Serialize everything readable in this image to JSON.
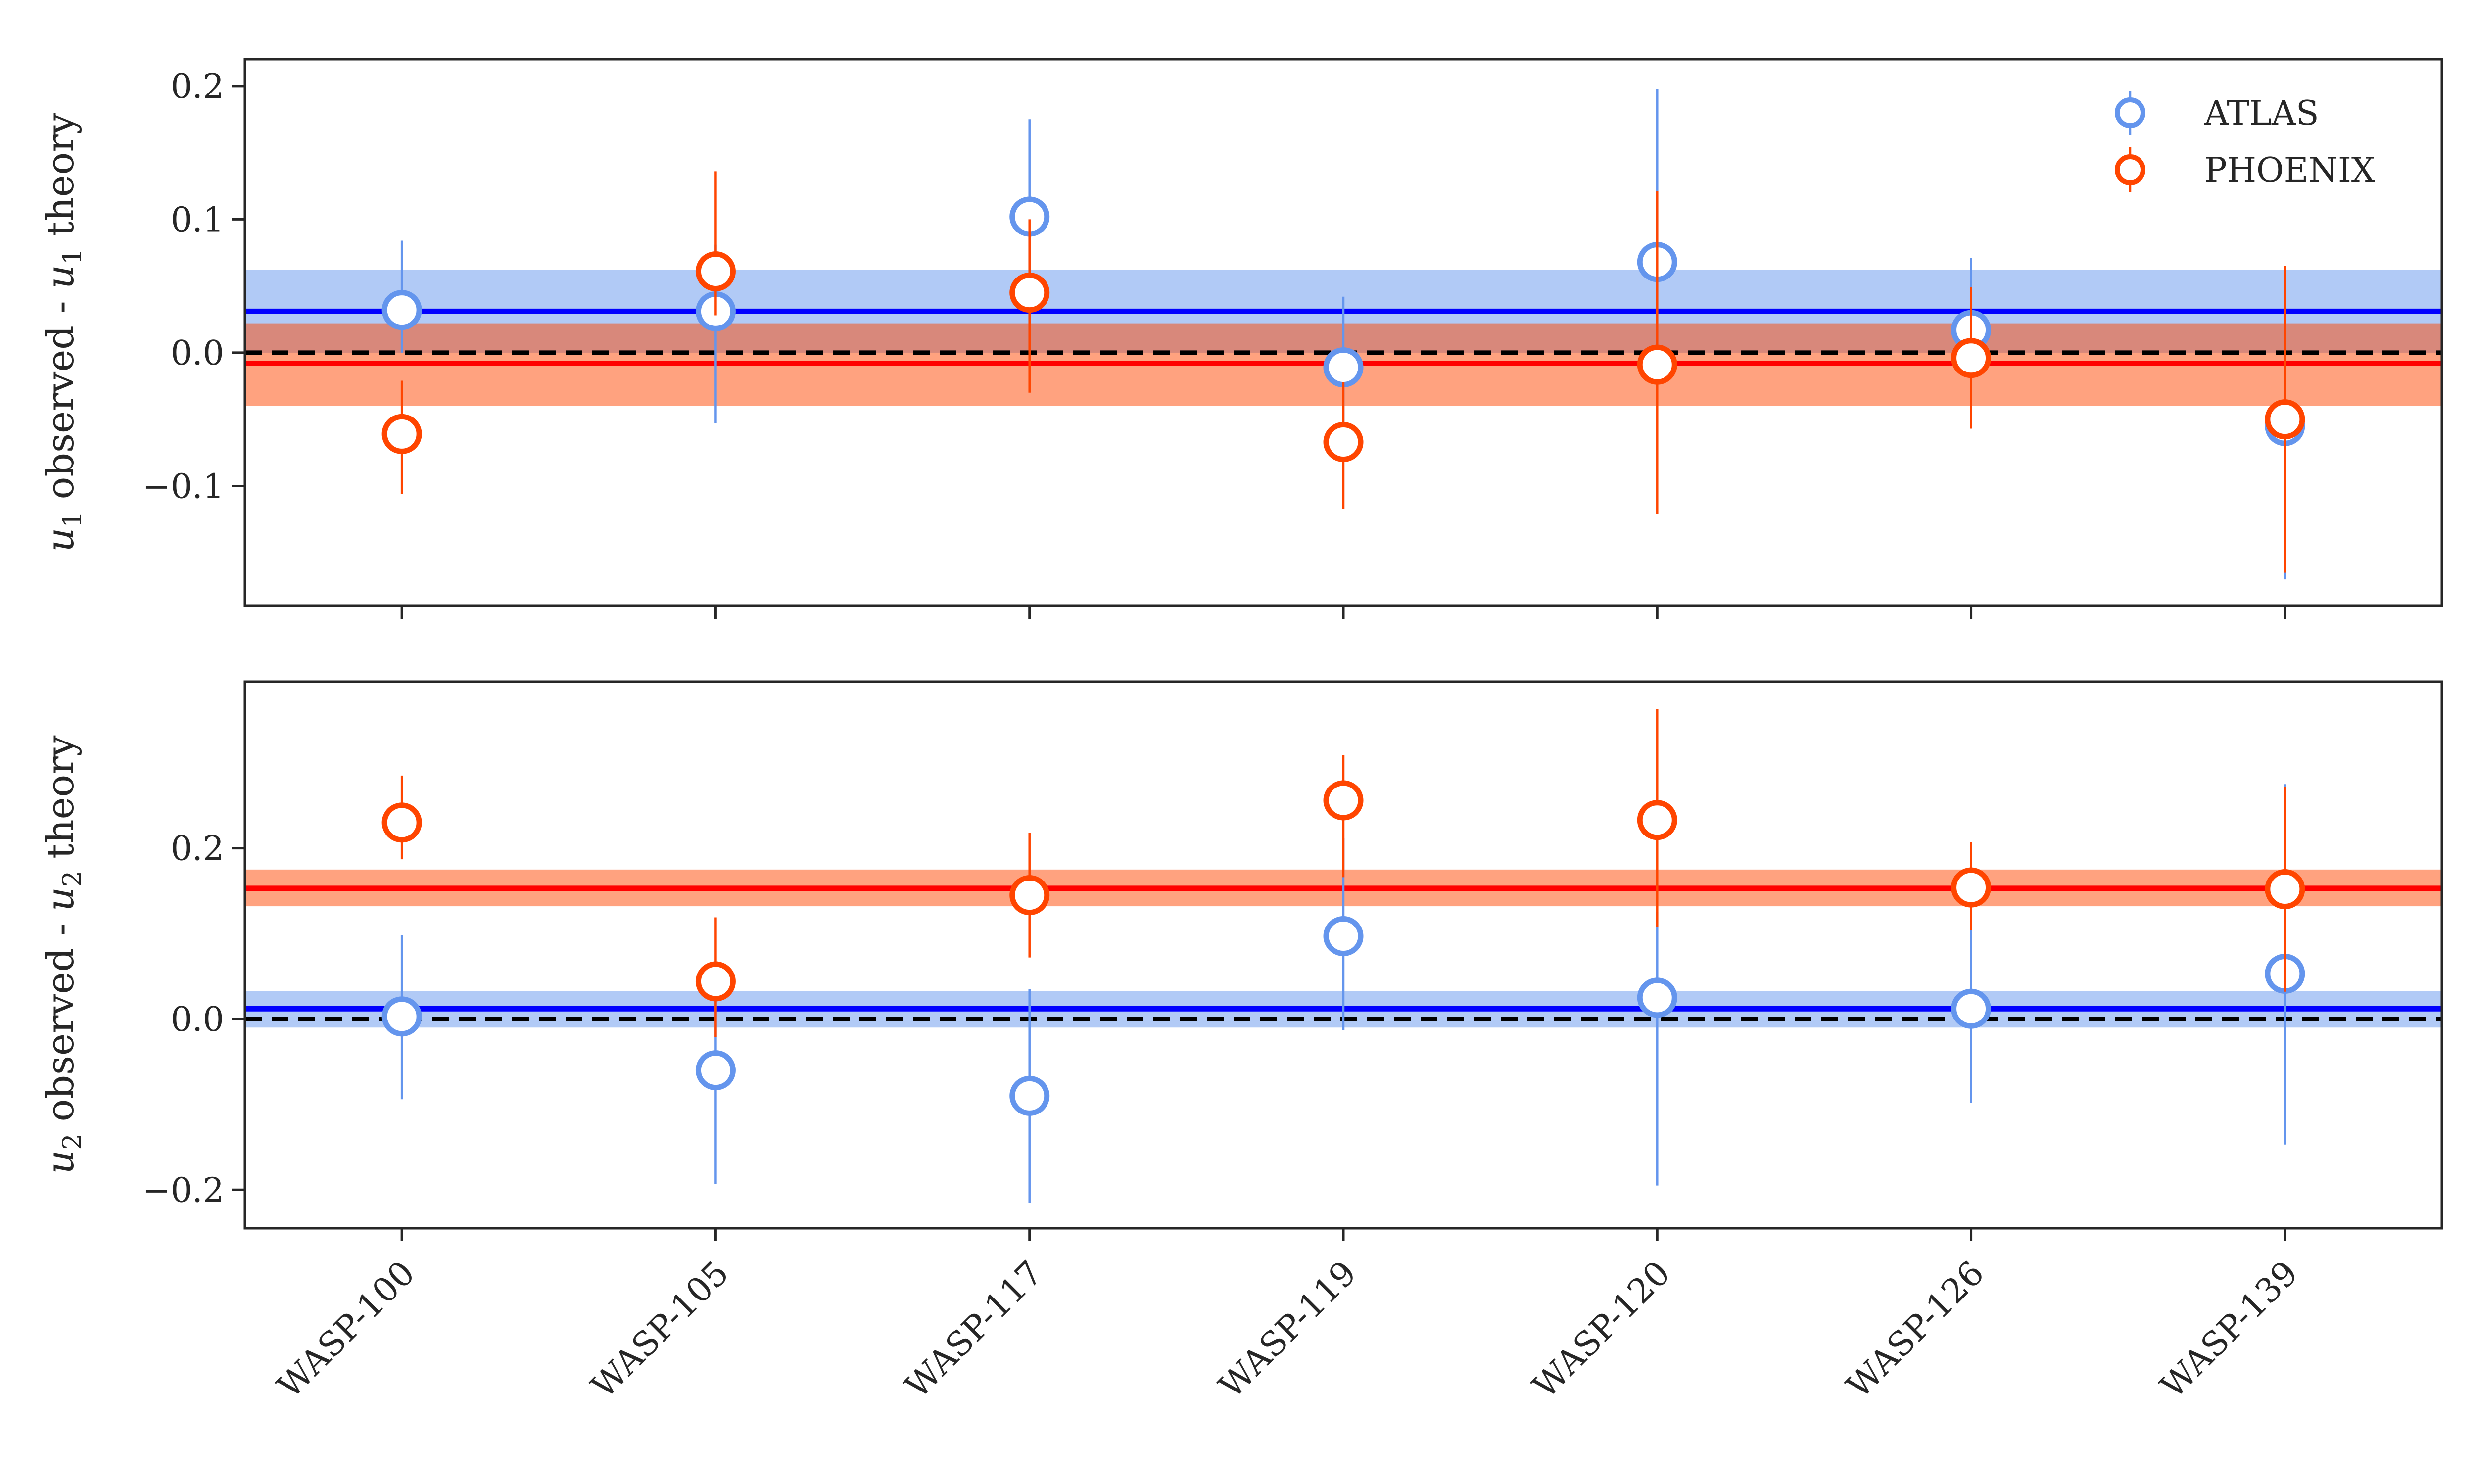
{
  "chart_data": [
    {
      "type": "scatter",
      "panel": "top",
      "ylabel": "u1 observed - u1 theory",
      "ylabel_parts": {
        "var": "u",
        "sub": "1",
        "mid": " observed - ",
        "var2": "u",
        "sub2": "1",
        "end": " theory"
      },
      "categories": [
        "WASP-100",
        "WASP-105",
        "WASP-117",
        "WASP-119",
        "WASP-120",
        "WASP-126",
        "WASP-139"
      ],
      "ylim": [
        -0.19,
        0.22
      ],
      "yticks": [
        -0.1,
        0.0,
        0.1,
        0.2
      ],
      "ytick_labels": [
        "−0.1",
        "0.0",
        "0.1",
        "0.2"
      ],
      "reference_line": 0.0,
      "series": [
        {
          "name": "ATLAS",
          "color": "#6495ED",
          "values": [
            0.032,
            0.031,
            0.102,
            -0.011,
            0.068,
            0.017,
            -0.055
          ],
          "err_lo": [
            0.032,
            0.084,
            0.077,
            0.053,
            0.078,
            0.045,
            0.115
          ],
          "err_hi": [
            0.052,
            0.05,
            0.073,
            0.053,
            0.13,
            0.054,
            0.115
          ],
          "mean": 0.031,
          "mean_color": "#0000FF",
          "band": [
            0.0,
            0.062
          ],
          "band_color": "#6495ED"
        },
        {
          "name": "PHOENIX",
          "color": "#FF4500",
          "values": [
            -0.061,
            0.061,
            0.045,
            -0.067,
            -0.009,
            -0.004,
            -0.05
          ],
          "err_lo": [
            0.045,
            0.033,
            0.075,
            0.05,
            0.112,
            0.053,
            0.115
          ],
          "err_hi": [
            0.04,
            0.075,
            0.055,
            0.045,
            0.13,
            0.053,
            0.115
          ],
          "mean": -0.008,
          "mean_color": "#FF0000",
          "band": [
            -0.04,
            0.022
          ],
          "band_color": "#FF4500"
        }
      ],
      "legend": {
        "position": "top-right",
        "entries": [
          "ATLAS",
          "PHOENIX"
        ]
      },
      "grid": false
    },
    {
      "type": "scatter",
      "panel": "bottom",
      "ylabel": "u2 observed - u2 theory",
      "ylabel_parts": {
        "var": "u",
        "sub": "2",
        "mid": " observed - ",
        "var2": "u",
        "sub2": "2",
        "end": " theory"
      },
      "categories": [
        "WASP-100",
        "WASP-105",
        "WASP-117",
        "WASP-119",
        "WASP-120",
        "WASP-126",
        "WASP-139"
      ],
      "ylim": [
        -0.245,
        0.395
      ],
      "yticks": [
        -0.2,
        0.0,
        0.2
      ],
      "ytick_labels": [
        "−0.2",
        "0.0",
        "0.2"
      ],
      "reference_line": 0.0,
      "series": [
        {
          "name": "ATLAS",
          "color": "#6495ED",
          "values": [
            0.003,
            -0.06,
            -0.09,
            0.097,
            0.025,
            0.012,
            0.053
          ],
          "err_lo": [
            0.097,
            0.133,
            0.125,
            0.11,
            0.22,
            0.11,
            0.2
          ],
          "err_hi": [
            0.095,
            0.085,
            0.125,
            0.115,
            0.1,
            0.1,
            0.222
          ],
          "mean": 0.012,
          "mean_color": "#0000FF",
          "band": [
            -0.01,
            0.033
          ],
          "band_color": "#6495ED"
        },
        {
          "name": "PHOENIX",
          "color": "#FF4500",
          "values": [
            0.23,
            0.044,
            0.145,
            0.256,
            0.233,
            0.154,
            0.152
          ],
          "err_lo": [
            0.043,
            0.065,
            0.073,
            0.09,
            0.125,
            0.05,
            0.12
          ],
          "err_hi": [
            0.055,
            0.075,
            0.073,
            0.053,
            0.13,
            0.053,
            0.12
          ],
          "mean": 0.153,
          "mean_color": "#FF0000",
          "band": [
            0.132,
            0.175
          ],
          "band_color": "#FF4500"
        }
      ],
      "grid": false
    }
  ]
}
